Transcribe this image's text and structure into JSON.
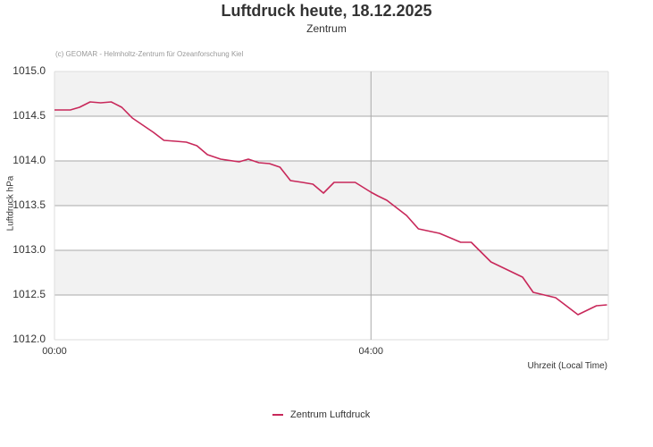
{
  "header": {
    "title": "Luftdruck heute, 18.12.2025",
    "subtitle": "Zentrum",
    "credit": "(c) GEOMAR - Helmholtz-Zentrum für Ozeanforschung Kiel"
  },
  "axes": {
    "ylabel": "Luftdruck hPa",
    "xlabel": "Uhrzeit (Local Time)",
    "yticks": [
      "1015.0",
      "1014.5",
      "1014.0",
      "1013.5",
      "1013.0",
      "1012.5",
      "1012.0"
    ],
    "xticks": [
      "00:00",
      "04:00"
    ]
  },
  "legend": {
    "label": "Zentrum Luftdruck",
    "color": "#c8285a"
  },
  "colors": {
    "series": "#c8285a",
    "band": "#f2f2f2",
    "grid": "#aaaaaa"
  },
  "chart_data": {
    "type": "line",
    "title": "Luftdruck heute, 18.12.2025",
    "subtitle": "Zentrum",
    "xlabel": "Uhrzeit (Local Time)",
    "ylabel": "Luftdruck hPa",
    "ylim": [
      1012.0,
      1015.0
    ],
    "xlim": [
      "00:00",
      "07:00"
    ],
    "grid": true,
    "legend_position": "bottom",
    "series": [
      {
        "name": "Zentrum Luftdruck",
        "x": [
          "00:00",
          "00:12",
          "00:19",
          "00:27",
          "00:35",
          "00:43",
          "00:51",
          "00:59",
          "01:07",
          "01:15",
          "01:23",
          "01:32",
          "01:40",
          "01:48",
          "01:56",
          "02:06",
          "02:20",
          "02:27",
          "02:35",
          "02:43",
          "02:51",
          "02:59",
          "03:08",
          "03:16",
          "03:24",
          "03:32",
          "03:40",
          "03:48",
          "04:00",
          "04:05",
          "04:12",
          "04:27",
          "04:36",
          "04:52",
          "05:08",
          "05:16",
          "05:31",
          "05:55",
          "06:03",
          "06:20",
          "06:37",
          "06:51",
          "06:59"
        ],
        "values": [
          1014.57,
          1014.57,
          1014.6,
          1014.66,
          1014.65,
          1014.66,
          1014.6,
          1014.48,
          1014.4,
          1014.32,
          1014.23,
          1014.22,
          1014.21,
          1014.17,
          1014.07,
          1014.02,
          1013.99,
          1014.02,
          1013.98,
          1013.97,
          1013.93,
          1013.78,
          1013.76,
          1013.74,
          1013.64,
          1013.76,
          1013.76,
          1013.76,
          1013.65,
          1013.61,
          1013.56,
          1013.39,
          1013.24,
          1013.19,
          1013.09,
          1013.09,
          1012.87,
          1012.7,
          1012.53,
          1012.47,
          1012.28,
          1012.38,
          1012.39
        ]
      }
    ]
  }
}
